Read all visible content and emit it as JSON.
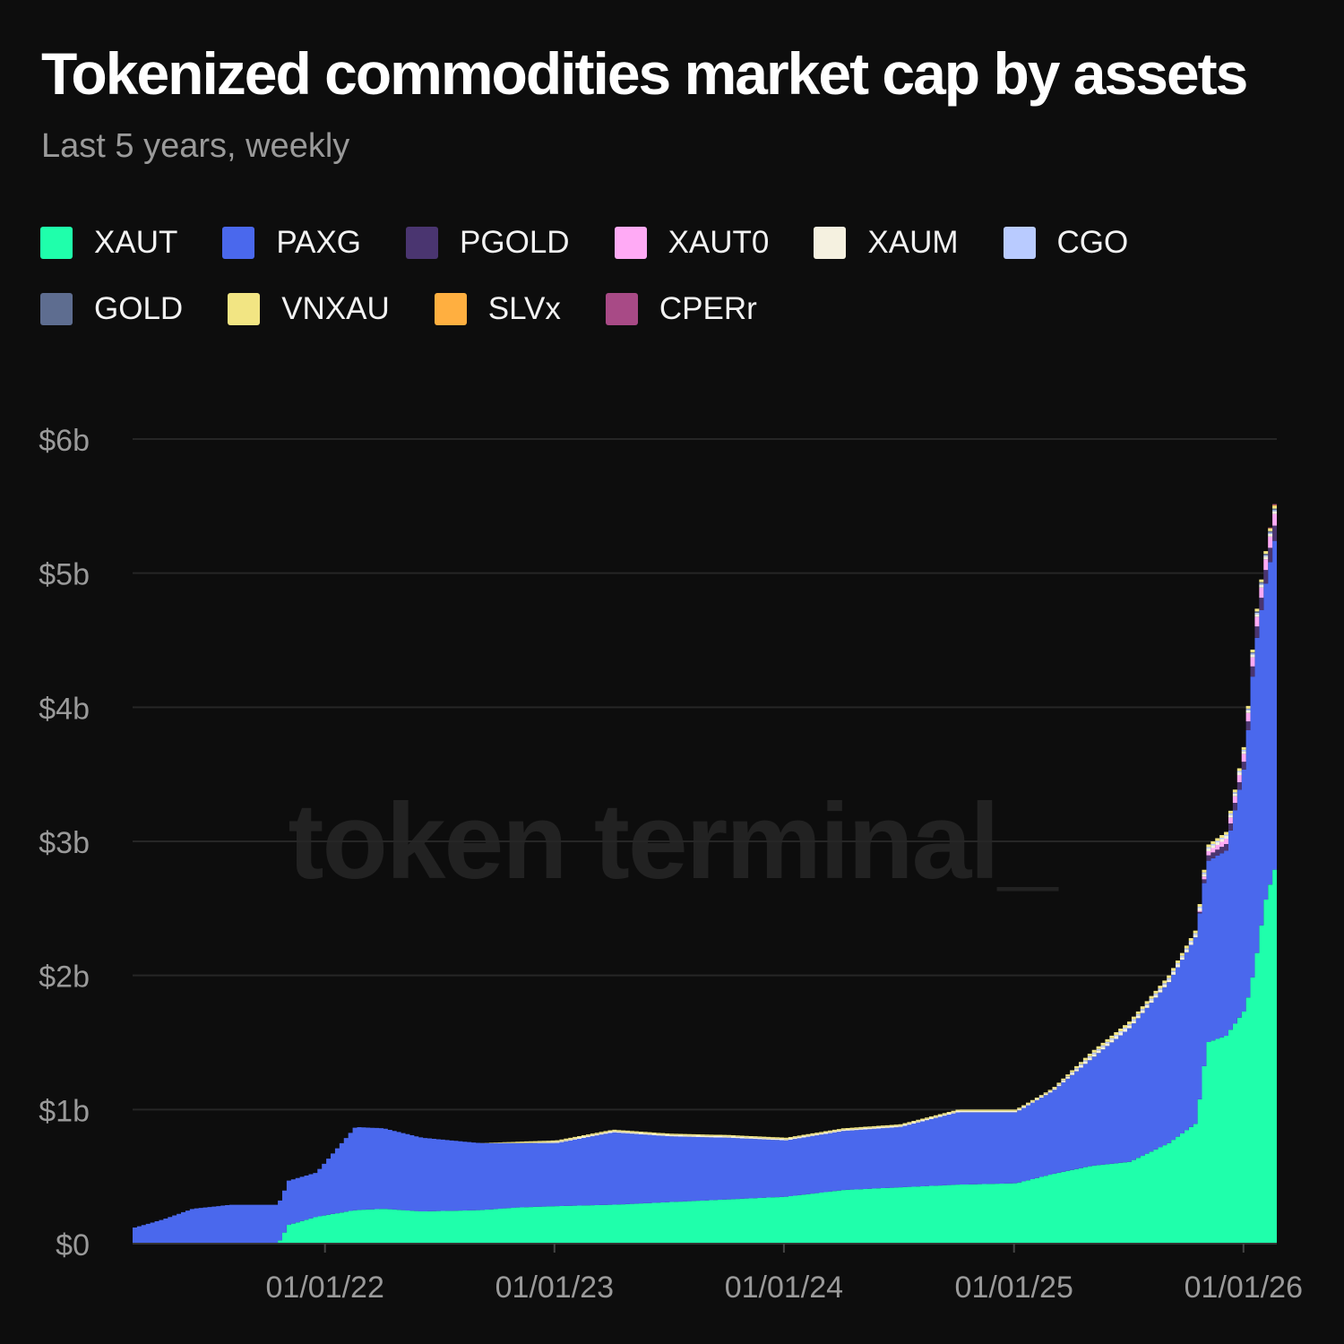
{
  "chart_data": {
    "type": "area",
    "stacked": true,
    "title": "Tokenized commodities market cap by assets",
    "subtitle": "Last 5 years, weekly",
    "watermark": "token terminal_",
    "xlabel": "",
    "ylabel": "",
    "y_unit": "USD billions",
    "ylim": [
      0,
      6
    ],
    "yticks": [
      0,
      1,
      2,
      3,
      4,
      5,
      6
    ],
    "ytick_labels": [
      "$0",
      "$1b",
      "$2b",
      "$3b",
      "$4b",
      "$5b",
      "$6b"
    ],
    "xlim": [
      "2021-03-01",
      "2026-02-23"
    ],
    "xticks": [
      "2022-01-01",
      "2023-01-01",
      "2024-01-01",
      "2025-01-01",
      "2026-01-01"
    ],
    "xtick_labels": [
      "01/01/22",
      "01/01/23",
      "01/01/24",
      "01/01/25",
      "01/01/26"
    ],
    "grid": true,
    "legend_position": "top",
    "x": [
      "2021-03-01",
      "2021-04-15",
      "2021-06-01",
      "2021-08-01",
      "2021-10-15",
      "2021-11-01",
      "2021-12-15",
      "2022-02-15",
      "2022-04-01",
      "2022-06-01",
      "2022-09-01",
      "2022-11-01",
      "2023-01-01",
      "2023-04-01",
      "2023-07-01",
      "2023-10-01",
      "2024-01-01",
      "2024-04-01",
      "2024-07-01",
      "2024-10-01",
      "2025-01-01",
      "2025-03-01",
      "2025-05-01",
      "2025-07-01",
      "2025-09-01",
      "2025-10-15",
      "2025-11-01",
      "2025-12-01",
      "2026-01-01",
      "2026-01-15",
      "2026-02-01",
      "2026-02-23"
    ],
    "series": [
      {
        "name": "XAUT",
        "color": "#1fffab",
        "values": [
          0,
          0,
          0,
          0,
          0,
          0.14,
          0.2,
          0.25,
          0.26,
          0.24,
          0.25,
          0.27,
          0.28,
          0.29,
          0.31,
          0.33,
          0.35,
          0.4,
          0.42,
          0.44,
          0.45,
          0.52,
          0.58,
          0.61,
          0.75,
          0.9,
          1.5,
          1.55,
          1.75,
          2.05,
          2.55,
          2.9
        ]
      },
      {
        "name": "PAXG",
        "color": "#4a68ed",
        "values": [
          0.12,
          0.18,
          0.26,
          0.29,
          0.29,
          0.33,
          0.33,
          0.62,
          0.6,
          0.55,
          0.5,
          0.48,
          0.47,
          0.54,
          0.49,
          0.46,
          0.42,
          0.44,
          0.45,
          0.54,
          0.53,
          0.62,
          0.8,
          1.0,
          1.2,
          1.4,
          1.35,
          1.38,
          1.85,
          2.35,
          2.35,
          2.5
        ]
      },
      {
        "name": "PGOLD",
        "color": "#4a3570",
        "values": [
          0,
          0,
          0,
          0,
          0,
          0,
          0,
          0,
          0,
          0,
          0,
          0,
          0,
          0,
          0,
          0,
          0,
          0,
          0,
          0,
          0,
          0,
          0,
          0,
          0,
          0,
          0.04,
          0.05,
          0.06,
          0.08,
          0.1,
          0.12
        ]
      },
      {
        "name": "XAUT0",
        "color": "#ffaaf5",
        "values": [
          0,
          0,
          0,
          0,
          0,
          0,
          0,
          0,
          0,
          0,
          0,
          0,
          0,
          0,
          0,
          0,
          0,
          0,
          0,
          0,
          0,
          0,
          0,
          0,
          0,
          0,
          0.03,
          0.04,
          0.06,
          0.07,
          0.08,
          0.09
        ]
      },
      {
        "name": "XAUM",
        "color": "#f5f1e0",
        "values": [
          0,
          0,
          0,
          0,
          0,
          0,
          0,
          0,
          0,
          0,
          0,
          0,
          0.01,
          0.01,
          0.01,
          0.01,
          0.01,
          0.01,
          0.01,
          0.01,
          0.01,
          0.01,
          0.02,
          0.02,
          0.02,
          0.02,
          0.02,
          0.02,
          0.02,
          0.02,
          0.02,
          0.02
        ]
      },
      {
        "name": "CGO",
        "color": "#b9cbff",
        "values": [
          0,
          0,
          0,
          0,
          0,
          0,
          0,
          0,
          0,
          0,
          0,
          0,
          0,
          0,
          0,
          0,
          0,
          0,
          0,
          0,
          0,
          0,
          0.01,
          0.01,
          0.01,
          0.01,
          0.01,
          0.01,
          0.01,
          0.01,
          0.01,
          0.01
        ]
      },
      {
        "name": "GOLD",
        "color": "#5e6d90",
        "values": [
          0,
          0,
          0,
          0,
          0,
          0,
          0,
          0,
          0,
          0,
          0,
          0,
          0,
          0,
          0,
          0,
          0,
          0,
          0,
          0,
          0,
          0,
          0,
          0,
          0,
          0,
          0,
          0,
          0,
          0.01,
          0.01,
          0.01
        ]
      },
      {
        "name": "VNXAU",
        "color": "#f2e583",
        "values": [
          0,
          0,
          0,
          0,
          0,
          0,
          0,
          0,
          0,
          0,
          0,
          0.01,
          0.01,
          0.01,
          0.01,
          0.01,
          0.01,
          0.01,
          0.01,
          0.01,
          0.01,
          0.01,
          0.02,
          0.02,
          0.02,
          0.02,
          0.02,
          0.02,
          0.02,
          0.02,
          0.02,
          0.02
        ]
      },
      {
        "name": "SLVx",
        "color": "#ffaf40",
        "values": [
          0,
          0,
          0,
          0,
          0,
          0,
          0,
          0,
          0,
          0,
          0,
          0,
          0,
          0,
          0,
          0,
          0,
          0,
          0,
          0,
          0,
          0,
          0,
          0,
          0,
          0,
          0,
          0,
          0,
          0,
          0,
          0.01
        ]
      },
      {
        "name": "CPERr",
        "color": "#a84a86",
        "values": [
          0,
          0,
          0,
          0,
          0,
          0,
          0,
          0,
          0,
          0,
          0,
          0,
          0,
          0,
          0,
          0,
          0,
          0,
          0,
          0,
          0,
          0,
          0,
          0,
          0,
          0,
          0,
          0,
          0,
          0,
          0,
          0.01
        ]
      }
    ]
  }
}
